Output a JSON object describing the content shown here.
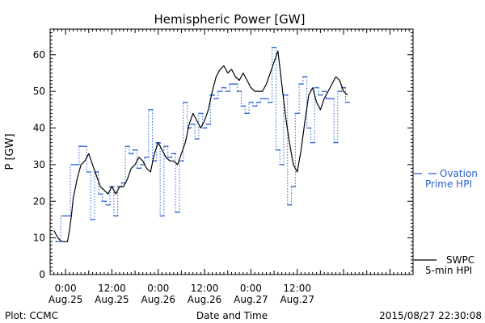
{
  "chart_data": {
    "type": "line",
    "title": "Hemispheric Power [GW]",
    "xlabel": "Date and Time",
    "ylabel": "P [GW]",
    "ylim": [
      0,
      67
    ],
    "xlim_hours": [
      -4,
      90
    ],
    "yticks": [
      0,
      10,
      20,
      30,
      40,
      50,
      60
    ],
    "xticks": [
      {
        "hour": 0,
        "time": "0:00",
        "date": "Aug.25"
      },
      {
        "hour": 12,
        "time": "12:00",
        "date": "Aug.25"
      },
      {
        "hour": 24,
        "time": "0:00",
        "date": "Aug.26"
      },
      {
        "hour": 36,
        "time": "12:00",
        "date": "Aug.26"
      },
      {
        "hour": 48,
        "time": "0:00",
        "date": "Aug.27"
      },
      {
        "hour": 60,
        "time": "12:00",
        "date": "Aug.27"
      }
    ],
    "plot_credit": "Plot: CCMC",
    "timestamp": "2015/08/27 22:30:08",
    "series": [
      {
        "name_lines": [
          "Ovation",
          "Prime HPI"
        ],
        "color": "#2b63d1",
        "style": "dashed-step",
        "points": [
          [
            -2,
            9
          ],
          [
            -0.5,
            16
          ],
          [
            0.5,
            16
          ],
          [
            2,
            30
          ],
          [
            3,
            30
          ],
          [
            4,
            35
          ],
          [
            5,
            35
          ],
          [
            6,
            28
          ],
          [
            7,
            15
          ],
          [
            8,
            28
          ],
          [
            9,
            22
          ],
          [
            10,
            20
          ],
          [
            11,
            19
          ],
          [
            12,
            24
          ],
          [
            13,
            16
          ],
          [
            14,
            24
          ],
          [
            15,
            25
          ],
          [
            16,
            35
          ],
          [
            17,
            33
          ],
          [
            18,
            34
          ],
          [
            19,
            29
          ],
          [
            20,
            30
          ],
          [
            21,
            32
          ],
          [
            22,
            45
          ],
          [
            23,
            31
          ],
          [
            24,
            36
          ],
          [
            25,
            16
          ],
          [
            26,
            35
          ],
          [
            27,
            32
          ],
          [
            28,
            33
          ],
          [
            29,
            17
          ],
          [
            30,
            31
          ],
          [
            31,
            47
          ],
          [
            32,
            40
          ],
          [
            33,
            41
          ],
          [
            34,
            37
          ],
          [
            35,
            44
          ],
          [
            36,
            40
          ],
          [
            37,
            41
          ],
          [
            38,
            49
          ],
          [
            39,
            48
          ],
          [
            40,
            50
          ],
          [
            41,
            51
          ],
          [
            42,
            50
          ],
          [
            43,
            52
          ],
          [
            44,
            52
          ],
          [
            45,
            50
          ],
          [
            46,
            46
          ],
          [
            47,
            44
          ],
          [
            48,
            47
          ],
          [
            49,
            46
          ],
          [
            50,
            47
          ],
          [
            51,
            48
          ],
          [
            52,
            48
          ],
          [
            53,
            47
          ],
          [
            54,
            62
          ],
          [
            55,
            34
          ],
          [
            56,
            30
          ],
          [
            57,
            49
          ],
          [
            58,
            19
          ],
          [
            59,
            24
          ],
          [
            60,
            44
          ],
          [
            61,
            52
          ],
          [
            62,
            54
          ],
          [
            63,
            40
          ],
          [
            64,
            36
          ],
          [
            65,
            51
          ],
          [
            66,
            49
          ],
          [
            67,
            50
          ],
          [
            68,
            48
          ],
          [
            69,
            48
          ],
          [
            70,
            36
          ],
          [
            71,
            50
          ],
          [
            72,
            51
          ],
          [
            73,
            47
          ]
        ]
      },
      {
        "name_lines": [
          "SWPC",
          "5-min HPI"
        ],
        "color": "#000000",
        "style": "solid",
        "points": [
          [
            -3,
            12
          ],
          [
            -2,
            10
          ],
          [
            -1,
            9
          ],
          [
            0.5,
            9
          ],
          [
            1,
            12
          ],
          [
            1.5,
            16
          ],
          [
            2,
            21
          ],
          [
            3,
            26
          ],
          [
            4,
            30
          ],
          [
            5,
            31
          ],
          [
            6,
            33
          ],
          [
            7,
            30
          ],
          [
            8,
            27
          ],
          [
            9,
            24
          ],
          [
            10,
            23
          ],
          [
            11,
            22
          ],
          [
            12,
            24
          ],
          [
            13,
            22
          ],
          [
            14,
            24
          ],
          [
            15,
            24
          ],
          [
            16,
            26
          ],
          [
            17,
            29
          ],
          [
            18,
            30
          ],
          [
            19,
            32
          ],
          [
            20,
            31
          ],
          [
            21,
            29
          ],
          [
            22,
            28
          ],
          [
            23,
            33
          ],
          [
            24,
            36
          ],
          [
            25,
            34
          ],
          [
            26,
            32
          ],
          [
            27,
            31
          ],
          [
            28,
            31
          ],
          [
            29,
            30
          ],
          [
            30,
            33
          ],
          [
            31,
            36
          ],
          [
            32,
            41
          ],
          [
            33,
            44
          ],
          [
            34,
            42
          ],
          [
            35,
            40
          ],
          [
            36,
            42
          ],
          [
            37,
            45
          ],
          [
            38,
            50
          ],
          [
            39,
            54
          ],
          [
            40,
            56
          ],
          [
            41,
            57
          ],
          [
            42,
            55
          ],
          [
            43,
            56
          ],
          [
            44,
            54
          ],
          [
            45,
            53
          ],
          [
            46,
            55
          ],
          [
            47,
            53
          ],
          [
            48,
            51
          ],
          [
            49,
            50
          ],
          [
            50,
            50
          ],
          [
            51,
            50
          ],
          [
            52,
            52
          ],
          [
            53,
            55
          ],
          [
            54,
            58
          ],
          [
            55,
            61
          ],
          [
            56,
            52
          ],
          [
            57,
            43
          ],
          [
            58,
            36
          ],
          [
            59,
            30
          ],
          [
            60,
            28
          ],
          [
            61,
            34
          ],
          [
            62,
            42
          ],
          [
            63,
            49
          ],
          [
            64,
            51
          ],
          [
            65,
            47
          ],
          [
            66,
            45
          ],
          [
            67,
            48
          ],
          [
            68,
            50
          ],
          [
            69,
            52
          ],
          [
            70,
            54
          ],
          [
            71,
            53
          ],
          [
            72,
            50
          ],
          [
            73,
            49
          ]
        ]
      }
    ]
  }
}
